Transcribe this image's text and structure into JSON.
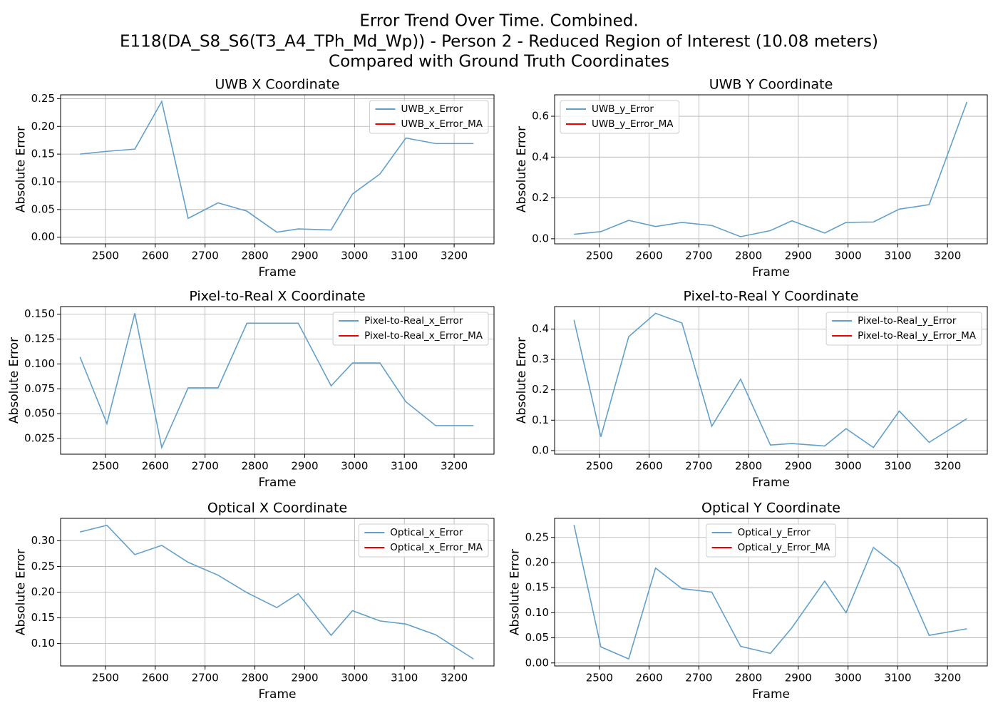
{
  "title": [
    "Error Trend Over Time. Combined.",
    "E118(DA_S8_S6(T3_A4_TPh_Md_Wp)) - Person 2 - Reduced Region of Interest (10.08 meters)",
    "Compared with Ground Truth Coordinates"
  ],
  "chart_data": [
    {
      "type": "line",
      "title": "UWB X Coordinate",
      "x_label": "Frame",
      "y_label": "Absolute Error",
      "x": [
        2449,
        2503,
        2559,
        2613,
        2666,
        2726,
        2784,
        2844,
        2887,
        2953,
        2996,
        3051,
        3103,
        3163,
        3239
      ],
      "series": [
        {
          "name": "UWB_x_Error",
          "color": "#62a0ca",
          "values": [
            0.15,
            0.155,
            0.159,
            0.245,
            0.034,
            0.062,
            0.047,
            0.009,
            0.015,
            0.013,
            0.078,
            0.114,
            0.179,
            0.169,
            0.169
          ]
        },
        {
          "name": "UWB_x_Error_MA",
          "color": "#ee0000",
          "values": [
            null,
            null,
            null,
            null,
            null,
            null,
            null,
            null,
            null,
            null,
            null,
            null,
            null,
            null,
            null
          ]
        }
      ],
      "xlim": [
        2410,
        3280
      ],
      "xticks": [
        2500,
        2600,
        2700,
        2800,
        2900,
        3000,
        3100,
        3200
      ],
      "ylim": [
        -0.012,
        0.257
      ],
      "yticks": [
        {
          "value": 0,
          "label": "0.00"
        },
        0.05,
        {
          "value": 0.1,
          "label": "0.10"
        },
        0.15,
        {
          "value": 0.2,
          "label": "0.20"
        },
        0.25
      ],
      "grid": true,
      "legend": "upper right"
    },
    {
      "type": "line",
      "title": "UWB Y Coordinate",
      "x_label": "Frame",
      "y_label": "Absolute Error",
      "x": [
        2449,
        2503,
        2559,
        2613,
        2666,
        2726,
        2784,
        2844,
        2887,
        2953,
        2996,
        3051,
        3103,
        3163,
        3239
      ],
      "series": [
        {
          "name": "UWB_y_Error",
          "color": "#62a0ca",
          "values": [
            0.022,
            0.035,
            0.09,
            0.06,
            0.08,
            0.065,
            0.01,
            0.04,
            0.088,
            0.028,
            0.08,
            0.082,
            0.145,
            0.167,
            0.67
          ]
        },
        {
          "name": "UWB_y_Error_MA",
          "color": "#ee0000",
          "values": [
            null,
            null,
            null,
            null,
            null,
            null,
            null,
            null,
            null,
            null,
            null,
            null,
            null,
            null,
            null
          ]
        }
      ],
      "xlim": [
        2410,
        3280
      ],
      "xticks": [
        2500,
        2600,
        2700,
        2800,
        2900,
        3000,
        3100,
        3200
      ],
      "ylim": [
        -0.025,
        0.705
      ],
      "yticks": [
        {
          "value": 0,
          "label": "0.0"
        },
        0.2,
        0.4,
        0.6
      ],
      "grid": true,
      "legend": "upper left"
    },
    {
      "type": "line",
      "title": "Pixel-to-Real X Coordinate",
      "x_label": "Frame",
      "y_label": "Absolute Error",
      "x": [
        2449,
        2503,
        2559,
        2613,
        2666,
        2726,
        2784,
        2844,
        2887,
        2953,
        2996,
        3051,
        3103,
        3163,
        3239
      ],
      "series": [
        {
          "name": "Pixel-to-Real_x_Error",
          "color": "#62a0ca",
          "values": [
            0.107,
            0.04,
            0.151,
            0.016,
            0.076,
            0.076,
            0.141,
            0.141,
            0.141,
            0.078,
            0.101,
            0.101,
            0.062,
            0.038,
            0.038
          ]
        },
        {
          "name": "Pixel-to-Real_x_Error_MA",
          "color": "#ee0000",
          "values": [
            null,
            null,
            null,
            null,
            null,
            null,
            null,
            null,
            null,
            null,
            null,
            null,
            null,
            null,
            null
          ]
        }
      ],
      "xlim": [
        2410,
        3280
      ],
      "xticks": [
        2500,
        2600,
        2700,
        2800,
        2900,
        3000,
        3100,
        3200
      ],
      "ylim": [
        0.0093,
        0.1577
      ],
      "yticks": [
        0.025,
        {
          "value": 0.05,
          "label": "0.050"
        },
        0.075,
        {
          "value": 0.1,
          "label": "0.100"
        },
        0.125,
        {
          "value": 0.15,
          "label": "0.150"
        }
      ],
      "grid": true,
      "legend": "upper right"
    },
    {
      "type": "line",
      "title": "Pixel-to-Real Y Coordinate",
      "x_label": "Frame",
      "y_label": "Absolute Error",
      "x": [
        2449,
        2503,
        2559,
        2613,
        2666,
        2726,
        2784,
        2844,
        2887,
        2953,
        2996,
        3051,
        3103,
        3163,
        3239
      ],
      "series": [
        {
          "name": "Pixel-to-Real_y_Error",
          "color": "#62a0ca",
          "values": [
            0.43,
            0.045,
            0.375,
            0.452,
            0.42,
            0.08,
            0.235,
            0.018,
            0.023,
            0.015,
            0.072,
            0.01,
            0.13,
            0.027,
            0.105
          ]
        },
        {
          "name": "Pixel-to-Real_y_Error_MA",
          "color": "#ee0000",
          "values": [
            null,
            null,
            null,
            null,
            null,
            null,
            null,
            null,
            null,
            null,
            null,
            null,
            null,
            null,
            null
          ]
        }
      ],
      "xlim": [
        2410,
        3280
      ],
      "xticks": [
        2500,
        2600,
        2700,
        2800,
        2900,
        3000,
        3100,
        3200
      ],
      "ylim": [
        -0.012,
        0.474
      ],
      "yticks": [
        {
          "value": 0,
          "label": "0.0"
        },
        0.1,
        0.2,
        0.3,
        0.4
      ],
      "grid": true,
      "legend": "upper right"
    },
    {
      "type": "line",
      "title": "Optical X Coordinate",
      "x_label": "Frame",
      "y_label": "Absolute Error",
      "x": [
        2449,
        2503,
        2559,
        2613,
        2666,
        2726,
        2784,
        2844,
        2887,
        2953,
        2996,
        3051,
        3103,
        3163,
        3239
      ],
      "series": [
        {
          "name": "Optical_x_Error",
          "color": "#62a0ca",
          "values": [
            0.317,
            0.33,
            0.273,
            0.291,
            0.258,
            0.233,
            0.199,
            0.17,
            0.197,
            0.116,
            0.164,
            0.144,
            0.138,
            0.117,
            0.07
          ]
        },
        {
          "name": "Optical_x_Error_MA",
          "color": "#ee0000",
          "values": [
            null,
            null,
            null,
            null,
            null,
            null,
            null,
            null,
            null,
            null,
            null,
            null,
            null,
            null,
            null
          ]
        }
      ],
      "xlim": [
        2410,
        3280
      ],
      "xticks": [
        2500,
        2600,
        2700,
        2800,
        2900,
        3000,
        3100,
        3200
      ],
      "ylim": [
        0.0565,
        0.3435
      ],
      "yticks": [
        {
          "value": 0.1,
          "label": "0.10"
        },
        0.15,
        {
          "value": 0.2,
          "label": "0.20"
        },
        0.25,
        {
          "value": 0.3,
          "label": "0.30"
        }
      ],
      "grid": true,
      "legend": "upper right"
    },
    {
      "type": "line",
      "title": "Optical Y Coordinate",
      "x_label": "Frame",
      "y_label": "Absolute Error",
      "x": [
        2449,
        2503,
        2559,
        2613,
        2666,
        2726,
        2784,
        2844,
        2887,
        2953,
        2996,
        3051,
        3103,
        3163,
        3239
      ],
      "series": [
        {
          "name": "Optical_y_Error",
          "color": "#62a0ca",
          "values": [
            0.275,
            0.032,
            0.008,
            0.189,
            0.148,
            0.141,
            0.033,
            0.019,
            0.07,
            0.163,
            0.1,
            0.23,
            0.19,
            0.055,
            0.068
          ]
        },
        {
          "name": "Optical_y_Error_MA",
          "color": "#ee0000",
          "values": [
            null,
            null,
            null,
            null,
            null,
            null,
            null,
            null,
            null,
            null,
            null,
            null,
            null,
            null,
            null
          ]
        }
      ],
      "xlim": [
        2410,
        3280
      ],
      "xticks": [
        2500,
        2600,
        2700,
        2800,
        2900,
        3000,
        3100,
        3200
      ],
      "ylim": [
        -0.006,
        0.288
      ],
      "yticks": [
        {
          "value": 0,
          "label": "0.00"
        },
        0.05,
        {
          "value": 0.1,
          "label": "0.10"
        },
        0.15,
        {
          "value": 0.2,
          "label": "0.20"
        },
        0.25
      ],
      "grid": true,
      "legend": "upper center"
    }
  ]
}
